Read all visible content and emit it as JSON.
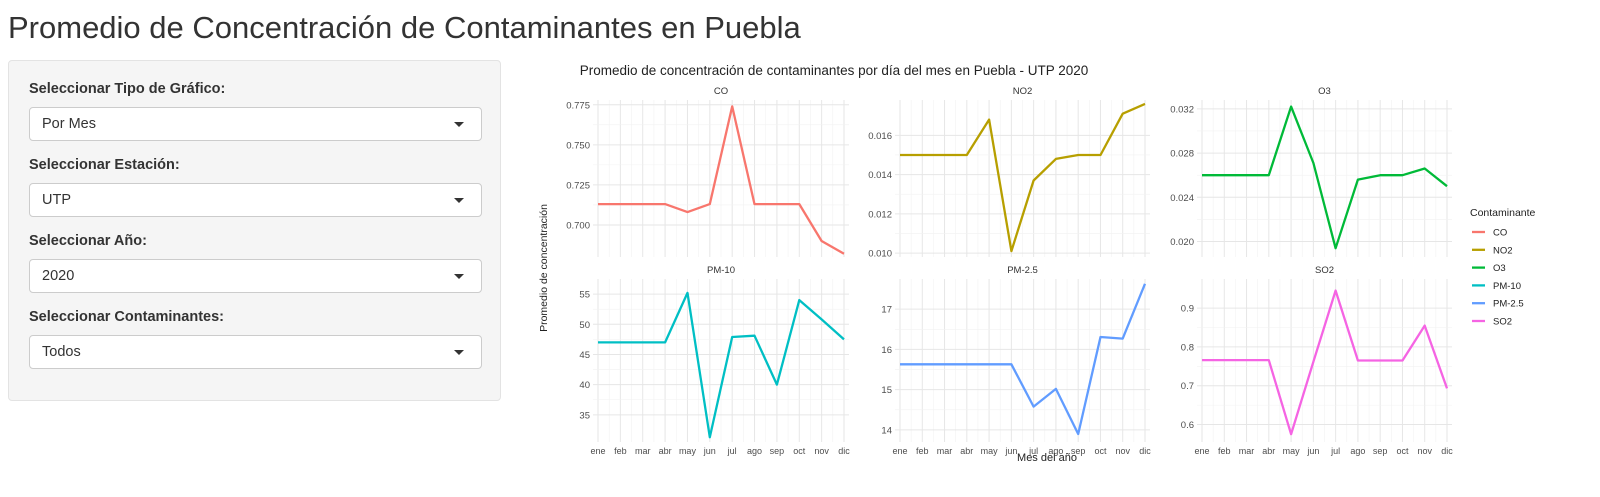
{
  "page": {
    "title": "Promedio de Concentración de Contaminantes en Puebla"
  },
  "sidebar": {
    "controls": [
      {
        "label": "Seleccionar Tipo de Gráfico:",
        "value": "Por Mes"
      },
      {
        "label": "Seleccionar Estación:",
        "value": "UTP"
      },
      {
        "label": "Seleccionar Año:",
        "value": "2020"
      },
      {
        "label": "Seleccionar Contaminantes:",
        "value": "Todos"
      }
    ]
  },
  "chart_data": {
    "type": "line",
    "title": "Promedio de concentración de contaminantes por día del mes en Puebla - UTP 2020",
    "xlabel": "Mes del año",
    "ylabel": "Promedio de concentración",
    "categories": [
      "ene",
      "feb",
      "mar",
      "abr",
      "may",
      "jun",
      "jul",
      "ago",
      "sep",
      "oct",
      "nov",
      "dic"
    ],
    "grid": true,
    "legend": {
      "title": "Contaminante",
      "position": "right"
    },
    "facets": [
      {
        "name": "CO",
        "color": "#F8766D",
        "ylim": [
          0.68,
          0.778
        ],
        "yticks": [
          0.7,
          0.725,
          0.75,
          0.775
        ],
        "tick_labels": [
          "0.700",
          "0.725",
          "0.750",
          "0.775"
        ],
        "values": [
          0.713,
          0.713,
          0.713,
          0.713,
          0.708,
          0.713,
          0.774,
          0.713,
          0.713,
          0.713,
          0.69,
          0.682
        ]
      },
      {
        "name": "NO2",
        "color": "#B79F00",
        "ylim": [
          0.0098,
          0.0178
        ],
        "yticks": [
          0.01,
          0.012,
          0.014,
          0.016
        ],
        "tick_labels": [
          "0.010",
          "0.012",
          "0.014",
          "0.016"
        ],
        "values": [
          0.015,
          0.015,
          0.015,
          0.015,
          0.0168,
          0.0101,
          0.0137,
          0.0148,
          0.015,
          0.015,
          0.0171,
          0.0176
        ]
      },
      {
        "name": "O3",
        "color": "#00BA38",
        "ylim": [
          0.0186,
          0.0328
        ],
        "yticks": [
          0.02,
          0.024,
          0.028,
          0.032
        ],
        "tick_labels": [
          "0.020",
          "0.024",
          "0.028",
          "0.032"
        ],
        "values": [
          0.026,
          0.026,
          0.026,
          0.026,
          0.0322,
          0.0271,
          0.0194,
          0.0256,
          0.026,
          0.026,
          0.0266,
          0.025
        ]
      },
      {
        "name": "PM-10",
        "color": "#00BFC4",
        "ylim": [
          30.5,
          57.5
        ],
        "yticks": [
          35,
          40,
          45,
          50,
          55
        ],
        "tick_labels": [
          "35",
          "40",
          "45",
          "50",
          "55"
        ],
        "values": [
          47.0,
          47.0,
          47.0,
          47.0,
          55.2,
          31.3,
          47.9,
          48.1,
          40.0,
          54.0,
          50.8,
          47.5
        ]
      },
      {
        "name": "PM-2.5",
        "color": "#619CFF",
        "ylim": [
          13.7,
          17.75
        ],
        "yticks": [
          14,
          15,
          16,
          17
        ],
        "tick_labels": [
          "14",
          "15",
          "16",
          "17"
        ],
        "values": [
          15.63,
          15.63,
          15.63,
          15.63,
          15.63,
          15.63,
          14.58,
          15.02,
          13.9,
          16.31,
          16.27,
          17.63
        ]
      },
      {
        "name": "SO2",
        "color": "#F564E3",
        "ylim": [
          0.555,
          0.975
        ],
        "yticks": [
          0.6,
          0.7,
          0.8,
          0.9
        ],
        "tick_labels": [
          "0.6",
          "0.7",
          "0.8",
          "0.9"
        ],
        "values": [
          0.766,
          0.766,
          0.766,
          0.766,
          0.575,
          0.762,
          0.945,
          0.765,
          0.765,
          0.765,
          0.855,
          0.693
        ]
      }
    ]
  }
}
